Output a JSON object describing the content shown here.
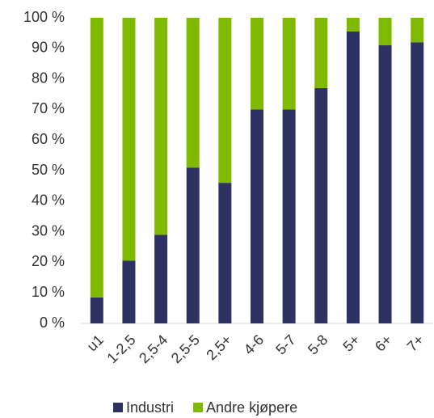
{
  "chart_data": {
    "type": "stacked_bar",
    "categories": [
      "u1",
      "1-2,5",
      "2,5-4",
      "2,5-5",
      "2,5+",
      "4-6",
      "5-7",
      "5-8",
      "5+",
      "6+",
      "7+"
    ],
    "series": [
      {
        "name": "Industri",
        "color": "#2e3262",
        "values": [
          8.5,
          20.5,
          29,
          51,
          46,
          70,
          70,
          77,
          95.5,
          91,
          92
        ]
      },
      {
        "name": "Andre kjøpere",
        "color": "#7fba00",
        "values": [
          91.5,
          79.5,
          71,
          49,
          54,
          30,
          30,
          23,
          4.5,
          9,
          8
        ]
      }
    ],
    "ylim": [
      0,
      100
    ],
    "yticks": [
      {
        "value": 0,
        "label": "0 %"
      },
      {
        "value": 10,
        "label": "10 %"
      },
      {
        "value": 20,
        "label": "20 %"
      },
      {
        "value": 30,
        "label": "30 %"
      },
      {
        "value": 40,
        "label": "40 %"
      },
      {
        "value": 50,
        "label": "50 %"
      },
      {
        "value": 60,
        "label": "60 %"
      },
      {
        "value": 70,
        "label": "70 %"
      },
      {
        "value": 80,
        "label": "80 %"
      },
      {
        "value": 90,
        "label": "90 %"
      },
      {
        "value": 100,
        "label": "100 %"
      }
    ],
    "legend": "bottom"
  }
}
